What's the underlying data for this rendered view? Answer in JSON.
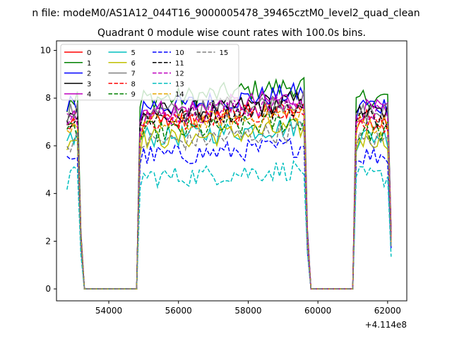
{
  "figure": {
    "suptitle": "n file: modeM0/AS1A12_044T16_9000005478_39465cztM0_level2_quad_clean",
    "title": "Quadrant 0 module wise count rates with 100.0s bins.",
    "offset_label": "+4.114e8"
  },
  "chart_data": {
    "type": "line",
    "title": "Quadrant 0 module wise count rates with 100.0s bins.",
    "xlabel": "",
    "ylabel": "",
    "x_offset": 411400000,
    "x_tick_values": [
      54000,
      56000,
      58000,
      60000,
      62000
    ],
    "x_tick_labels": [
      "54000",
      "56000",
      "58000",
      "60000",
      "62000"
    ],
    "y_tick_values": [
      0,
      2,
      4,
      6,
      8,
      10
    ],
    "y_tick_labels": [
      "0",
      "2",
      "4",
      "6",
      "8",
      "10"
    ],
    "xlim": [
      52500,
      62550
    ],
    "ylim": [
      -0.5,
      10.4
    ],
    "grid": false,
    "legend_position": "top-left",
    "legend_columns": 4,
    "segments": [
      {
        "start": 52800,
        "end": 53200
      },
      {
        "start": 54900,
        "end": 59700
      },
      {
        "start": 61100,
        "end": 62100
      }
    ],
    "series": [
      {
        "name": "0",
        "color": "#ff0000",
        "dash": "solid",
        "level": 7.1
      },
      {
        "name": "1",
        "color": "#008000",
        "dash": "solid",
        "level": 8.0
      },
      {
        "name": "2",
        "color": "#0000ff",
        "dash": "solid",
        "level": 7.7
      },
      {
        "name": "3",
        "color": "#000000",
        "dash": "solid",
        "level": 7.4
      },
      {
        "name": "4",
        "color": "#bf00bf",
        "dash": "solid",
        "level": 7.5
      },
      {
        "name": "5",
        "color": "#00bfbf",
        "dash": "solid",
        "level": 6.4
      },
      {
        "name": "6",
        "color": "#bfbf00",
        "dash": "solid",
        "level": 6.3
      },
      {
        "name": "7",
        "color": "#808080",
        "dash": "solid",
        "level": 7.4
      },
      {
        "name": "8",
        "color": "#ff0000",
        "dash": "dashed",
        "level": 7.0
      },
      {
        "name": "9",
        "color": "#008000",
        "dash": "dashed",
        "level": 6.6
      },
      {
        "name": "10",
        "color": "#0000ff",
        "dash": "dashed",
        "level": 5.6
      },
      {
        "name": "11",
        "color": "#000000",
        "dash": "dashed",
        "level": 7.2
      },
      {
        "name": "12",
        "color": "#bf00bf",
        "dash": "dashed",
        "level": 7.3
      },
      {
        "name": "13",
        "color": "#00bfbf",
        "dash": "dashed",
        "level": 4.7
      },
      {
        "name": "14",
        "color": "#e6a800",
        "dash": "dashed",
        "level": 6.9
      },
      {
        "name": "15",
        "color": "#808080",
        "dash": "dashed",
        "level": 6.2
      }
    ]
  }
}
